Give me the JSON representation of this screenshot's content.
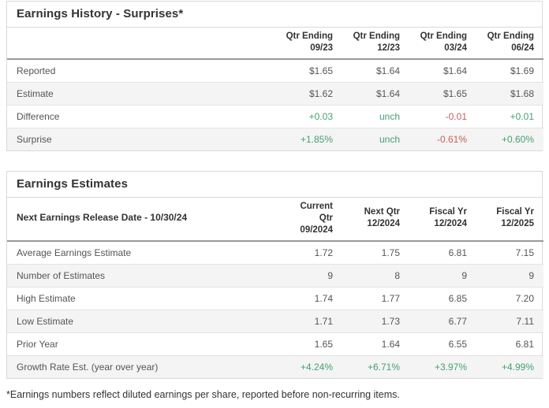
{
  "colors": {
    "positive": "#46a06e",
    "negative": "#cc5c5c",
    "border": "#d9d9d9",
    "stripe": "#f4f4f4",
    "header_rule": "#999999"
  },
  "history": {
    "title": "Earnings History - Surprises*",
    "columns": [
      {
        "l1": "Qtr Ending",
        "l2": "09/23"
      },
      {
        "l1": "Qtr Ending",
        "l2": "12/23"
      },
      {
        "l1": "Qtr Ending",
        "l2": "03/24"
      },
      {
        "l1": "Qtr Ending",
        "l2": "06/24"
      }
    ],
    "rows": [
      {
        "label": "Reported",
        "values": [
          "$1.65",
          "$1.64",
          "$1.64",
          "$1.69"
        ]
      },
      {
        "label": "Estimate",
        "values": [
          "$1.62",
          "$1.64",
          "$1.65",
          "$1.68"
        ]
      },
      {
        "label": "Difference",
        "values": [
          "+0.03",
          "unch",
          "-0.01",
          "+0.01"
        ]
      },
      {
        "label": "Surprise",
        "values": [
          "+1.85%",
          "unch",
          "-0.61%",
          "+0.60%"
        ]
      }
    ]
  },
  "estimates": {
    "title": "Earnings Estimates",
    "header_label": "Next Earnings Release Date - 10/30/24",
    "columns": [
      {
        "l1": "Current Qtr",
        "l2": "09/2024"
      },
      {
        "l1": "Next Qtr",
        "l2": "12/2024"
      },
      {
        "l1": "Fiscal Yr",
        "l2": "12/2024"
      },
      {
        "l1": "Fiscal Yr",
        "l2": "12/2025"
      }
    ],
    "rows": [
      {
        "label": "Average Earnings Estimate",
        "values": [
          "1.72",
          "1.75",
          "6.81",
          "7.15"
        ]
      },
      {
        "label": "Number of Estimates",
        "values": [
          "9",
          "8",
          "9",
          "9"
        ]
      },
      {
        "label": "High Estimate",
        "values": [
          "1.74",
          "1.77",
          "6.85",
          "7.20"
        ]
      },
      {
        "label": "Low Estimate",
        "values": [
          "1.71",
          "1.73",
          "6.77",
          "7.11"
        ]
      },
      {
        "label": "Prior Year",
        "values": [
          "1.65",
          "1.64",
          "6.55",
          "6.81"
        ]
      },
      {
        "label": "Growth Rate Est. (year over year)",
        "values": [
          "+4.24%",
          "+6.71%",
          "+3.97%",
          "+4.99%"
        ]
      }
    ]
  },
  "footnote": "*Earnings numbers reflect diluted earnings per share, reported before non-recurring items."
}
